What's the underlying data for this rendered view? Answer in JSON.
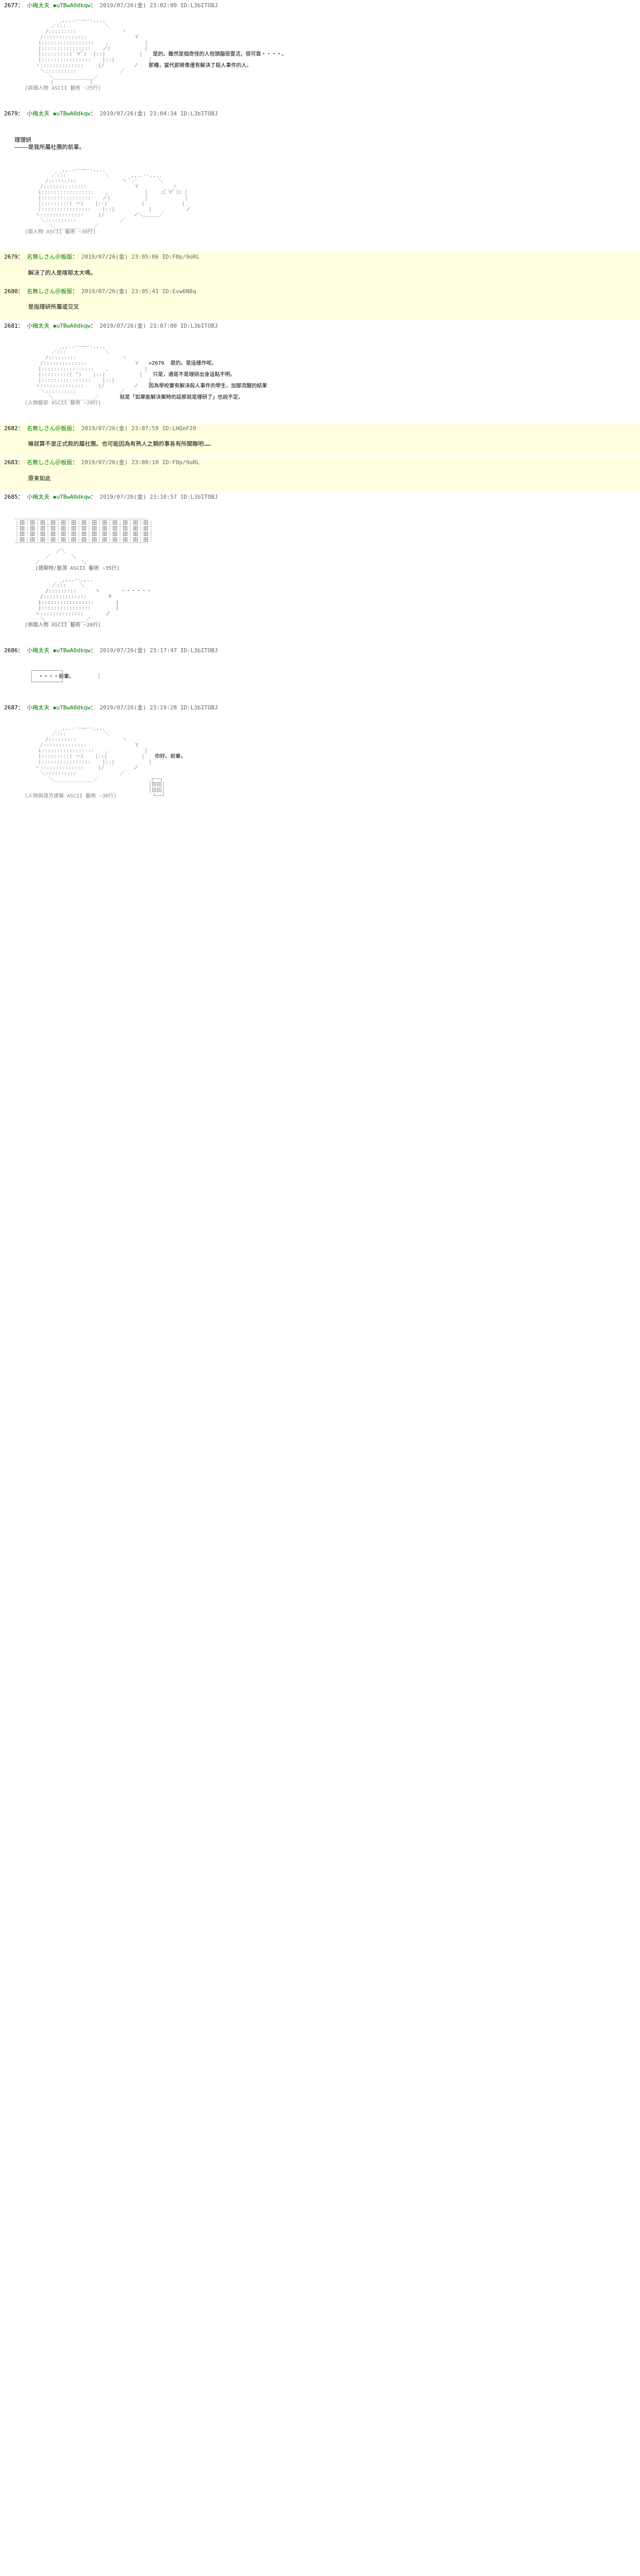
{
  "posts": [
    {
      "num": "2677",
      "name": "小梅太夫",
      "trip": "◆uTBwA0dkqw",
      "date": "2019/07/26(金) 23:02:00",
      "id": "ID:L3bITOBJ",
      "highlighted": false,
      "aa_placeholder": "figure_aa_1",
      "dialogue": [
        "是的。雖然是個奇怪的人但頭腦很靈活，很可靠・・・・。",
        "那種，當代即將像還有解決了殺人事件的人。"
      ]
    },
    {
      "num": "2679",
      "name": "小梅太夫",
      "trip": "◆uTBwA0dkqw",
      "date": "2019/07/26(金) 23:04:34",
      "id": "ID:L3bITOBJ",
      "highlighted": false,
      "aa_placeholder": "figure_aa_2",
      "narration": "理理妍\n————是我所屬社團的前輩。",
      "dialogue": []
    },
    {
      "num": "2679",
      "name": "名無しさん＠板版",
      "trip": "",
      "date": "2019/07/26(金) 23:05:06",
      "id": "ID:F0p/9oRL",
      "highlighted": true,
      "dialogue": [
        "解決了的人是喀耶太大嗎。"
      ]
    },
    {
      "num": "2680",
      "name": "名無しさん＠板版",
      "trip": "",
      "date": "2019/07/26(金) 23:05:41",
      "id": "ID:Evw6N8q",
      "highlighted": true,
      "dialogue": [
        "是指理研所屬或交叉"
      ]
    },
    {
      "num": "2681",
      "name": "小梅太夫",
      "trip": "◆uTBwA0dkqw",
      "date": "2019/07/26(金) 23:07:00",
      "id": "ID:L3bITOBJ",
      "highlighted": false,
      "aa_placeholder": "figure_aa_3",
      "dialogue": [
        ">2679  是的。是這樣作呢。",
        "只是，通是不是理研出身這點不明。",
        "因為學校實有解決殺人事件的學生，加御流醒的結果",
        "就是「如果能解決案時的話那就是理研了」也說不定。"
      ]
    },
    {
      "num": "2682",
      "name": "名無しさん＠板版",
      "trip": "",
      "date": "2019/07/26(金) 23:07:59",
      "id": "ID:LHQeF20",
      "highlighted": true,
      "dialogue": [
        "嘛就算不是正式款的屬社團。也可能因為有熟人之類的事各有所關聯吧……"
      ]
    },
    {
      "num": "2683",
      "name": "名無しさん＠板版",
      "trip": "",
      "date": "2019/07/26(金) 23:08:10",
      "id": "ID:F0p/9oRL",
      "highlighted": true,
      "dialogue": [
        "原來如此"
      ]
    },
    {
      "num": "2685",
      "name": "小梅太夫",
      "trip": "◆uTBwA0dkqw",
      "date": "2019/07/26(金) 23:10:57",
      "id": "ID:L3bITOBJ",
      "highlighted": false,
      "aa_placeholder": "building_aa",
      "dialogue": []
    },
    {
      "num": "2686",
      "name": "小梅太夫",
      "trip": "◆uTBwA0dkqw",
      "date": "2019/07/26(金) 23:17:47",
      "id": "ID:L3bITOBJ",
      "highlighted": false,
      "dialogue": [
        "・・・・前輩。"
      ]
    },
    {
      "num": "2687",
      "name": "小梅太夫",
      "trip": "◆uTBwA0dkqw",
      "date": "2019/07/26(金) 23:19:28",
      "id": "ID:L3bITOBJ",
      "highlighted": false,
      "aa_placeholder": "figure_aa_4",
      "dialogue": [
        "你好。前輩。"
      ]
    }
  ],
  "aa_blocks": {
    "figure_aa_1": "　　　　　,.ｨ´⌒ヽ\n　　　 ／　　 　　＼\n　　 /　 　 i　　　　ヽ\n　　|　 　( ﾟ∀ﾟ)　　|\n　　|　　　　　 　　 |\n　　ヽ　　　　　　 ﾉ\n　　　＼＿＿＿／\n　[ASCII art character - detailed female figure]\n　　　approximately 30 lines of monospace art",
    "figure_aa_2": "　　　　　,.ｨ´⌒ヽ\n　　　 ／　　　 　＼\n　 [Two characters ASCII art]\n　　approximately 35 lines",
    "figure_aa_3": "　　　　　,.ｨ´⌒ヽ\n　　　 ／　　　 　＼\n　 [Character face ASCII art]\n　　approximately 25 lines",
    "building_aa": "　　＿＿＿＿＿＿＿＿＿＿＿＿\n　 ｜｜｜｜｜｜｜｜｜｜｜｜\n　 ｜｜｜｜｜｜｜｜｜｜｜｜\n　[Building/rooftop ASCII art]\n　　approximately 40 lines",
    "figure_aa_side": "　　　　　,.ｨ´⌒ヽ\n　 [Character side profile]\n　　approximately 25 lines",
    "figure_aa_4": "　　　　　,.ｨ´⌒ヽ\n　　　 ／　　　 　＼\n　 [Character with building in distance]\n　　approximately 35 lines"
  },
  "colors": {
    "bg": "#ffffff",
    "highlight_bg": "#ffffe0",
    "name_color": "#008000",
    "text_color": "#000000",
    "aa_color": "#888888",
    "meta_color": "#666666"
  }
}
